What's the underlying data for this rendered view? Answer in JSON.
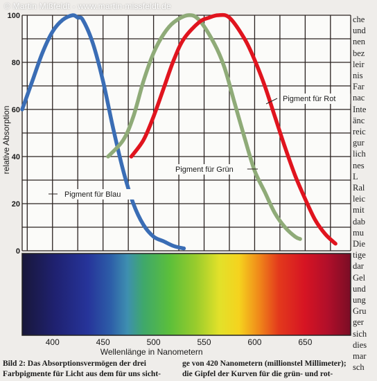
{
  "watermark": "© Martin Mißfeldt - www.martin-missfeldt.de",
  "chart_data": {
    "type": "line",
    "ylabel": "relative Absorption",
    "xlabel": "Wellenlänge in Nanometern",
    "xlim": [
      370,
      695
    ],
    "ylim": [
      0,
      100
    ],
    "xticks": [
      400,
      450,
      500,
      550,
      600,
      650
    ],
    "xtick_labels": [
      "400",
      "450",
      "500",
      "550",
      "600",
      "650"
    ],
    "yticks": [
      0,
      20,
      40,
      60,
      80,
      100
    ],
    "ytick_labels": [
      "0",
      "20",
      "40",
      "60",
      "80",
      "100"
    ],
    "grid": true,
    "series": [
      {
        "name": "Pigment für Blau",
        "color": "#3a6db5",
        "x": [
          370,
          380,
          390,
          400,
          410,
          420,
          425,
          430,
          440,
          450,
          460,
          470,
          480,
          490,
          500,
          510,
          520,
          530
        ],
        "y": [
          60,
          72,
          84,
          93,
          98,
          100,
          99,
          98,
          88,
          72,
          52,
          34,
          20,
          11,
          6,
          4,
          2,
          1
        ]
      },
      {
        "name": "Pigment für Grün",
        "color": "#8fab78",
        "x": [
          455,
          470,
          480,
          490,
          500,
          510,
          520,
          534,
          545,
          560,
          570,
          580,
          590,
          600,
          610,
          620,
          630,
          640,
          645
        ],
        "y": [
          40,
          47,
          57,
          72,
          84,
          92,
          97,
          100,
          98,
          88,
          78,
          63,
          48,
          34,
          25,
          16,
          10,
          6,
          5
        ]
      },
      {
        "name": "Pigment für Rot",
        "color": "#e0141e",
        "x": [
          478,
          490,
          500,
          510,
          520,
          530,
          545,
          555,
          564,
          575,
          590,
          600,
          610,
          620,
          630,
          640,
          650,
          660,
          670,
          680
        ],
        "y": [
          40,
          47,
          57,
          69,
          81,
          90,
          97,
          99,
          100,
          99,
          90,
          81,
          70,
          57,
          44,
          32,
          22,
          13,
          7,
          3
        ]
      }
    ]
  },
  "right_column": [
    "che",
    "und",
    "nen",
    "bez",
    "leir",
    "nis",
    "Far",
    "nac",
    "Inte",
    "änc",
    "reic",
    "gur",
    "lich",
    "nes",
    "L",
    "Ral",
    "leic",
    "mit",
    "dab",
    "mu",
    "Die",
    "tige",
    "dar",
    "Gel",
    "und",
    "ung",
    "Gru",
    "ger",
    "sich",
    "dies",
    "mar",
    "sch"
  ],
  "caption": {
    "line1_left": "Bild 2: Das Absorptionsvermögen der drei",
    "line2_left": "Farbpigmente für Licht aus dem für uns sicht-",
    "line1_right": "ge von 420 Nanometern (millionstel Millimeter);",
    "line2_right": "die Gipfel der Kurven für die grün- und rot-"
  }
}
